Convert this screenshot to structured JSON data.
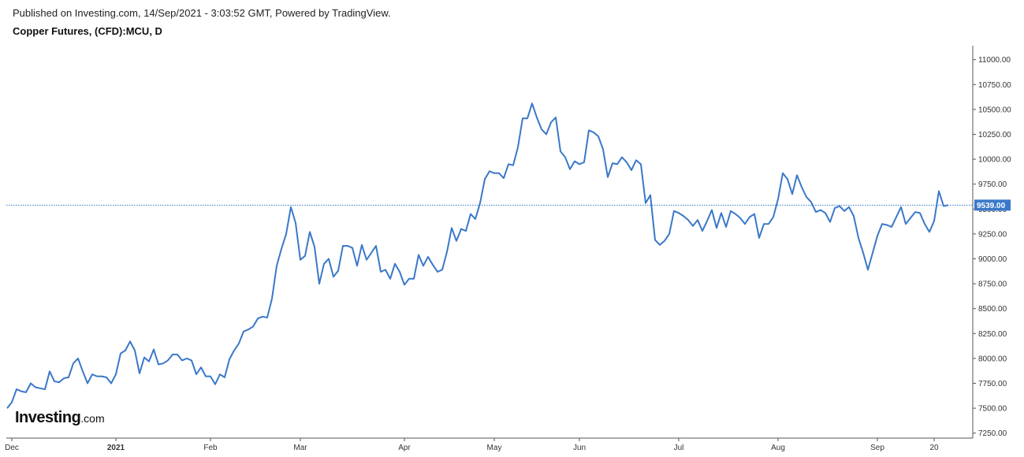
{
  "header": {
    "published": "Published on Investing.com, 14/Sep/2021 - 3:03:52 GMT, Powered by TradingView.",
    "symbol": "Copper Futures, (CFD):MCU, D"
  },
  "logo": {
    "main": "Investing",
    "suffix": ".com"
  },
  "colors": {
    "line": "#3a78c9",
    "price_label_bg": "#3a78c9",
    "axis": "#555555",
    "bg": "#ffffff"
  },
  "chart_data": {
    "type": "line",
    "title": "",
    "xlabel": "",
    "ylabel": "",
    "ylim": [
      7200,
      11140
    ],
    "grid": false,
    "y_axis_position": "right",
    "y_ticks": [
      11000,
      10750,
      10500,
      10250,
      10000,
      9750,
      9500,
      9250,
      9000,
      8750,
      8500,
      8250,
      8000,
      7750,
      7500,
      7250
    ],
    "x_ticks": [
      {
        "label": "Dec",
        "index": 1,
        "bold": false
      },
      {
        "label": "2021",
        "index": 23,
        "bold": true
      },
      {
        "label": "Feb",
        "index": 43,
        "bold": false
      },
      {
        "label": "Mar",
        "index": 62,
        "bold": false
      },
      {
        "label": "Apr",
        "index": 84,
        "bold": false
      },
      {
        "label": "May",
        "index": 103,
        "bold": false
      },
      {
        "label": "Jun",
        "index": 121,
        "bold": false
      },
      {
        "label": "Jul",
        "index": 142,
        "bold": false
      },
      {
        "label": "Aug",
        "index": 163,
        "bold": false
      },
      {
        "label": "Sep",
        "index": 184,
        "bold": false
      },
      {
        "label": "20",
        "index": 196,
        "bold": false
      }
    ],
    "last_price": 9539,
    "last_price_label": "9539.00",
    "series": [
      {
        "values": [
          7500,
          7560,
          7690,
          7670,
          7660,
          7750,
          7710,
          7700,
          7690,
          7870,
          7770,
          7760,
          7800,
          7810,
          7950,
          8000,
          7870,
          7750,
          7840,
          7820,
          7820,
          7810,
          7750,
          7840,
          8050,
          8080,
          8170,
          8080,
          7850,
          8010,
          7970,
          8090,
          7940,
          7950,
          7980,
          8040,
          8040,
          7980,
          8000,
          7980,
          7840,
          7910,
          7820,
          7820,
          7740,
          7840,
          7810,
          7990,
          8080,
          8150,
          8270,
          8290,
          8320,
          8400,
          8420,
          8410,
          8600,
          8930,
          9100,
          9250,
          9520,
          9360,
          8990,
          9030,
          9270,
          9120,
          8750,
          8950,
          9000,
          8820,
          8880,
          9130,
          9130,
          9110,
          8930,
          9140,
          8990,
          9060,
          9130,
          8870,
          8890,
          8800,
          8950,
          8870,
          8740,
          8800,
          8800,
          9040,
          8930,
          9020,
          8940,
          8870,
          8890,
          9070,
          9310,
          9180,
          9300,
          9280,
          9450,
          9400,
          9560,
          9800,
          9880,
          9860,
          9860,
          9810,
          9950,
          9940,
          10120,
          10410,
          10410,
          10560,
          10420,
          10300,
          10250,
          10370,
          10420,
          10080,
          10020,
          9900,
          9980,
          9950,
          9970,
          10290,
          10270,
          10230,
          10100,
          9820,
          9960,
          9950,
          10020,
          9970,
          9890,
          9990,
          9950,
          9560,
          9640,
          9190,
          9140,
          9180,
          9250,
          9480,
          9460,
          9430,
          9390,
          9330,
          9390,
          9280,
          9380,
          9490,
          9310,
          9460,
          9320,
          9480,
          9450,
          9410,
          9350,
          9420,
          9450,
          9210,
          9350,
          9350,
          9420,
          9600,
          9860,
          9800,
          9650,
          9840,
          9720,
          9620,
          9570,
          9470,
          9490,
          9460,
          9370,
          9510,
          9530,
          9480,
          9520,
          9430,
          9210,
          9060,
          8890,
          9060,
          9230,
          9350,
          9340,
          9320,
          9420,
          9520,
          9350,
          9410,
          9470,
          9460,
          9350,
          9270,
          9380,
          9680,
          9530,
          9539
        ]
      }
    ]
  }
}
